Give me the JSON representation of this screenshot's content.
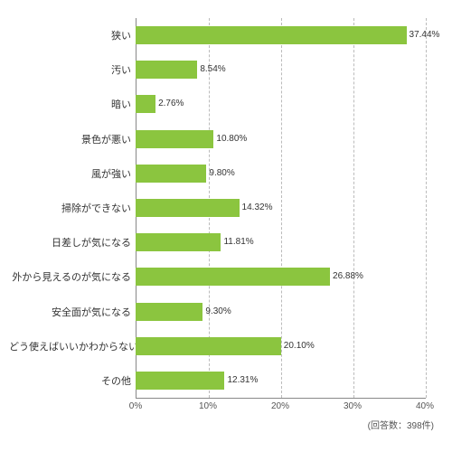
{
  "chart": {
    "type": "bar-horizontal",
    "background_color": "#ffffff",
    "bar_color": "#8bc53f",
    "grid_color": "#bbbbbb",
    "axis_color": "#888888",
    "label_fontsize": 11,
    "value_fontsize": 10,
    "xmax": 40,
    "xtick_step": 10,
    "xticks": [
      "0%",
      "10%",
      "20%",
      "30%",
      "40%"
    ],
    "rows": [
      {
        "label": "狭い",
        "value": 37.44,
        "text": "37.44%"
      },
      {
        "label": "汚い",
        "value": 8.54,
        "text": "8.54%"
      },
      {
        "label": "暗い",
        "value": 2.76,
        "text": "2.76%"
      },
      {
        "label": "景色が悪い",
        "value": 10.8,
        "text": "10.80%"
      },
      {
        "label": "風が強い",
        "value": 9.8,
        "text": "9.80%"
      },
      {
        "label": "掃除ができない",
        "value": 14.32,
        "text": "14.32%"
      },
      {
        "label": "日差しが気になる",
        "value": 11.81,
        "text": "11.81%"
      },
      {
        "label": "外から見えるのが気になる",
        "value": 26.88,
        "text": "26.88%"
      },
      {
        "label": "安全面が気になる",
        "value": 9.3,
        "text": "9.30%"
      },
      {
        "label": "どう使えばいいかわからない",
        "value": 20.1,
        "text": "20.10%"
      },
      {
        "label": "その他",
        "value": 12.31,
        "text": "12.31%"
      }
    ],
    "footnote": "(回答数：398件)"
  }
}
